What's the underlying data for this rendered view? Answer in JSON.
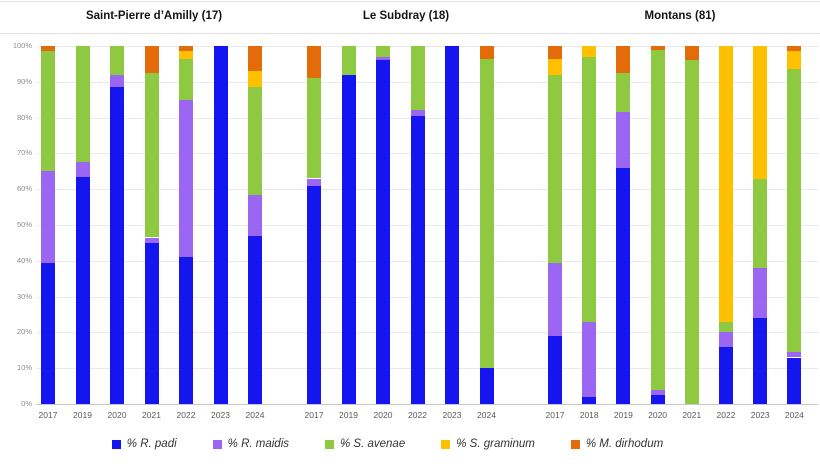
{
  "chart_data": {
    "type": "bar",
    "stacked": true,
    "title": "",
    "ylabel": "",
    "xlabel": "",
    "unit": "percent",
    "ylim": [
      0,
      100
    ],
    "grid": true,
    "legend_position": "bottom",
    "y_ticks": [
      "0%",
      "10%",
      "20%",
      "30%",
      "40%",
      "50%",
      "60%",
      "70%",
      "80%",
      "90%",
      "100%"
    ],
    "species_order": [
      "padi",
      "maidis",
      "avenae",
      "graminum",
      "dirhodum"
    ],
    "colors": {
      "padi": "#1515f0",
      "maidis": "#9b66f2",
      "avenae": "#8fc841",
      "graminum": "#ffc000",
      "dirhodum": "#e36b0a"
    },
    "legend": [
      {
        "key": "padi",
        "label": "% R. padi"
      },
      {
        "key": "maidis",
        "label": "% R. maidis"
      },
      {
        "key": "avenae",
        "label": "% S. avenae"
      },
      {
        "key": "graminum",
        "label": "% S. graminum"
      },
      {
        "key": "dirhodum",
        "label": "% M. dirhodum"
      }
    ],
    "panels": [
      {
        "title": "Saint-Pierre d’Amilly (17)",
        "years": [
          "2017",
          "2019",
          "2020",
          "2021",
          "2022",
          "2023",
          "2024"
        ],
        "series": {
          "padi": [
            39.5,
            63.5,
            88.5,
            45,
            41,
            100,
            47
          ],
          "maidis": [
            25.5,
            4,
            3.5,
            1.5,
            44,
            0,
            11.5
          ],
          "avenae": [
            33.5,
            32.5,
            8,
            46,
            11.5,
            0,
            30
          ],
          "graminum": [
            0,
            0,
            0,
            0,
            2,
            0,
            4.5
          ],
          "dirhodum": [
            1.5,
            0,
            0,
            7.5,
            1.5,
            0,
            7
          ]
        }
      },
      {
        "title": "Le Subdray (18)",
        "years": [
          "2017",
          "2019",
          "2020",
          "2022",
          "2023",
          "2024"
        ],
        "series": {
          "padi": [
            61,
            92,
            96,
            80.5,
            100,
            10
          ],
          "maidis": [
            2,
            0,
            1,
            1.5,
            0,
            0
          ],
          "avenae": [
            28,
            8,
            3,
            18,
            0,
            86.5
          ],
          "graminum": [
            0,
            0,
            0,
            0,
            0,
            0
          ],
          "dirhodum": [
            9,
            0,
            0,
            0,
            0,
            3.5
          ]
        }
      },
      {
        "title": "Montans (81)",
        "years": [
          "2017",
          "2018",
          "2019",
          "2020",
          "2021",
          "2022",
          "2023",
          "2024"
        ],
        "series": {
          "padi": [
            19,
            2,
            66,
            2.5,
            0,
            16,
            24,
            13
          ],
          "maidis": [
            20.5,
            21,
            15.5,
            1.5,
            0,
            4,
            14,
            1.5
          ],
          "avenae": [
            52.5,
            74,
            11,
            95,
            96,
            3,
            25,
            79
          ],
          "graminum": [
            4.5,
            3,
            0,
            0,
            0,
            77,
            37,
            5
          ],
          "dirhodum": [
            3.5,
            0,
            7.5,
            1,
            4,
            0,
            0,
            1.5
          ]
        }
      }
    ]
  }
}
